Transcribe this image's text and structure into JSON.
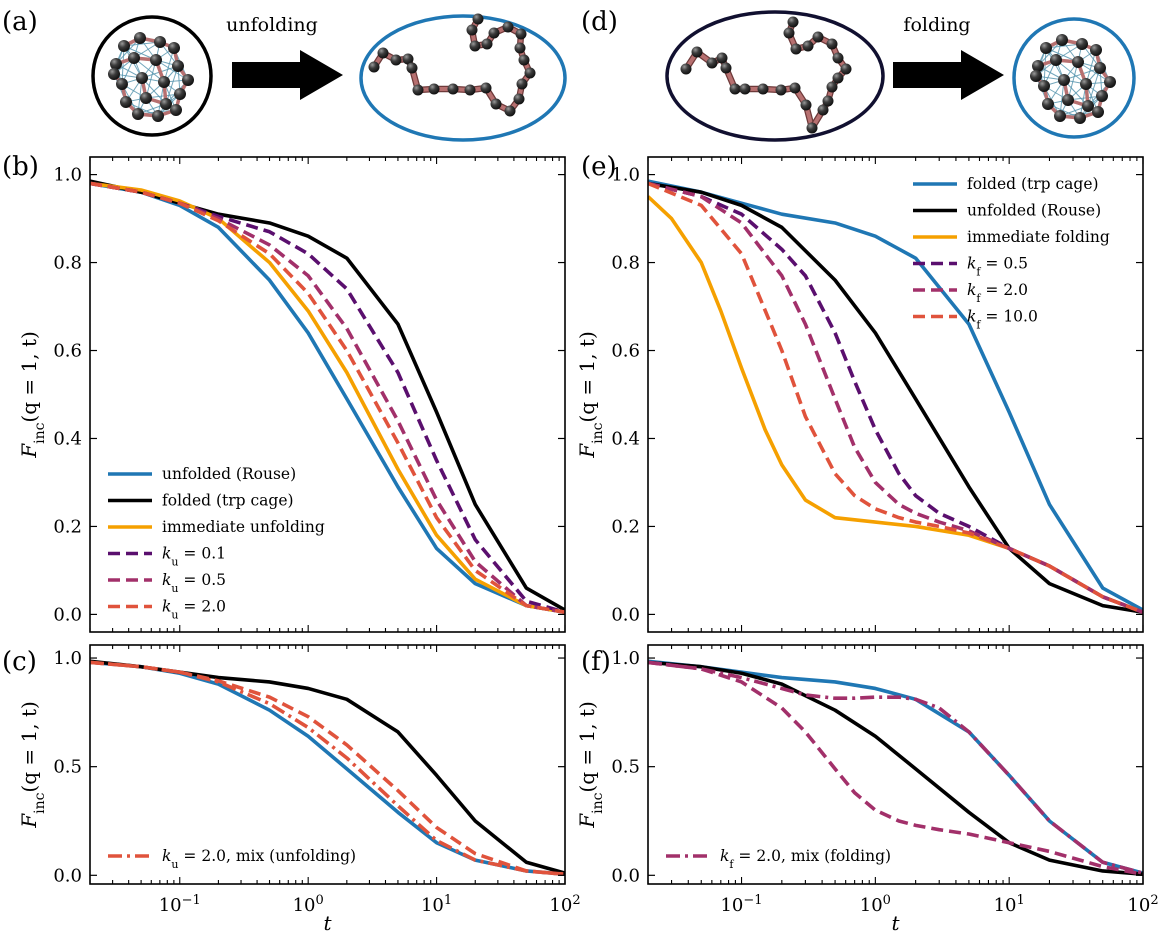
{
  "panel_labels": [
    "(a)",
    "(b)",
    "(c)",
    "(d)",
    "(e)",
    "(f)"
  ],
  "schematic": {
    "left_arrow_label": "unfolding",
    "right_arrow_label": "folding",
    "colors": {
      "folded_ring": "#000000",
      "unfolded_ring": "#1f77b4",
      "bead": "#3a3a3a",
      "bond": "#b77070",
      "contact": "#5a97b0"
    }
  },
  "chart_data": [
    {
      "id": "b",
      "type": "line",
      "xscale": "log",
      "xlim": [
        0.02,
        100
      ],
      "ylim": [
        -0.04,
        1.04
      ],
      "xlabel": "",
      "ylabel": "F_inc(q = 1, t)",
      "yticks": [
        "0.0",
        "0.2",
        "0.4",
        "0.6",
        "0.8",
        "1.0"
      ],
      "legend": "bottom-left",
      "series": [
        {
          "name": "unfolded (Rouse)",
          "color": "#1f77b4",
          "style": "solid",
          "x": [
            0.02,
            0.05,
            0.1,
            0.2,
            0.5,
            1,
            2,
            5,
            10,
            20,
            50,
            100
          ],
          "y": [
            0.98,
            0.96,
            0.93,
            0.88,
            0.76,
            0.64,
            0.49,
            0.29,
            0.15,
            0.07,
            0.02,
            0.005
          ]
        },
        {
          "name": "folded (trp cage)",
          "color": "#000000",
          "style": "solid",
          "x": [
            0.02,
            0.05,
            0.1,
            0.2,
            0.5,
            1,
            2,
            5,
            10,
            20,
            50,
            100
          ],
          "y": [
            0.985,
            0.96,
            0.935,
            0.91,
            0.89,
            0.86,
            0.81,
            0.66,
            0.46,
            0.25,
            0.06,
            0.01
          ]
        },
        {
          "name": "immediate unfolding",
          "color": "#f5a000",
          "style": "solid",
          "x": [
            0.02,
            0.05,
            0.1,
            0.2,
            0.5,
            1,
            2,
            5,
            10,
            20,
            50,
            100
          ],
          "y": [
            0.98,
            0.965,
            0.94,
            0.9,
            0.8,
            0.69,
            0.55,
            0.33,
            0.18,
            0.08,
            0.02,
            0.005
          ]
        },
        {
          "name": "k_u = 0.1",
          "color": "#5a0f6e",
          "style": "dashed",
          "x": [
            0.02,
            0.05,
            0.1,
            0.2,
            0.5,
            1,
            2,
            5,
            10,
            20,
            50,
            100
          ],
          "y": [
            0.98,
            0.96,
            0.935,
            0.905,
            0.87,
            0.82,
            0.74,
            0.55,
            0.35,
            0.17,
            0.03,
            0.005
          ]
        },
        {
          "name": "k_u = 0.5",
          "color": "#a2306a",
          "style": "dashed",
          "x": [
            0.02,
            0.05,
            0.1,
            0.2,
            0.5,
            1,
            2,
            5,
            10,
            20,
            50,
            100
          ],
          "y": [
            0.98,
            0.96,
            0.935,
            0.9,
            0.84,
            0.77,
            0.65,
            0.44,
            0.26,
            0.12,
            0.02,
            0.005
          ]
        },
        {
          "name": "k_u = 2.0",
          "color": "#e0533c",
          "style": "dashed",
          "x": [
            0.02,
            0.05,
            0.1,
            0.2,
            0.5,
            1,
            2,
            5,
            10,
            20,
            50,
            100
          ],
          "y": [
            0.98,
            0.96,
            0.935,
            0.895,
            0.82,
            0.73,
            0.6,
            0.39,
            0.22,
            0.1,
            0.02,
            0.005
          ]
        }
      ]
    },
    {
      "id": "c",
      "type": "line",
      "xscale": "log",
      "xlim": [
        0.02,
        100
      ],
      "ylim": [
        -0.04,
        1.06
      ],
      "xlabel": "t",
      "ylabel": "F_inc(q = 1, t)",
      "yticks": [
        "0.0",
        "0.5",
        "1.0"
      ],
      "legend": "bottom-left",
      "series": [
        {
          "name": "",
          "color": "#1f77b4",
          "style": "solid",
          "x": [
            0.02,
            0.05,
            0.1,
            0.2,
            0.5,
            1,
            2,
            5,
            10,
            20,
            50,
            100
          ],
          "y": [
            0.98,
            0.96,
            0.93,
            0.88,
            0.76,
            0.64,
            0.49,
            0.29,
            0.15,
            0.07,
            0.02,
            0.005
          ]
        },
        {
          "name": "",
          "color": "#000000",
          "style": "solid",
          "x": [
            0.02,
            0.05,
            0.1,
            0.2,
            0.5,
            1,
            2,
            5,
            10,
            20,
            50,
            100
          ],
          "y": [
            0.985,
            0.96,
            0.935,
            0.91,
            0.89,
            0.86,
            0.81,
            0.66,
            0.46,
            0.25,
            0.06,
            0.01
          ]
        },
        {
          "name": "",
          "color": "#e0533c",
          "style": "dashed",
          "x": [
            0.02,
            0.05,
            0.1,
            0.2,
            0.5,
            1,
            2,
            5,
            10,
            20,
            50,
            100
          ],
          "y": [
            0.98,
            0.96,
            0.935,
            0.895,
            0.82,
            0.73,
            0.6,
            0.39,
            0.22,
            0.1,
            0.02,
            0.005
          ]
        },
        {
          "name": "k_u = 2.0, mix (unfolding)",
          "color": "#e0533c",
          "style": "dashdot",
          "x": [
            0.02,
            0.05,
            0.1,
            0.2,
            0.5,
            1,
            2,
            5,
            10,
            20,
            50,
            100
          ],
          "y": [
            0.98,
            0.96,
            0.935,
            0.89,
            0.79,
            0.68,
            0.54,
            0.32,
            0.16,
            0.07,
            0.02,
            0.005
          ]
        }
      ]
    },
    {
      "id": "e",
      "type": "line",
      "xscale": "log",
      "xlim": [
        0.02,
        100
      ],
      "ylim": [
        -0.04,
        1.04
      ],
      "xlabel": "",
      "ylabel": "F_inc(q = 1, t)",
      "yticks": [
        "0.0",
        "0.2",
        "0.4",
        "0.6",
        "0.8",
        "1.0"
      ],
      "legend": "top-right",
      "series": [
        {
          "name": "folded (trp cage)",
          "color": "#1f77b4",
          "style": "solid",
          "x": [
            0.02,
            0.05,
            0.1,
            0.2,
            0.5,
            1,
            2,
            5,
            10,
            20,
            50,
            100
          ],
          "y": [
            0.985,
            0.96,
            0.935,
            0.91,
            0.89,
            0.86,
            0.81,
            0.66,
            0.46,
            0.25,
            0.06,
            0.01
          ]
        },
        {
          "name": "unfolded (Rouse)",
          "color": "#000000",
          "style": "solid",
          "x": [
            0.02,
            0.05,
            0.1,
            0.2,
            0.5,
            1,
            2,
            5,
            10,
            20,
            50,
            100
          ],
          "y": [
            0.98,
            0.96,
            0.93,
            0.88,
            0.76,
            0.64,
            0.49,
            0.29,
            0.15,
            0.07,
            0.02,
            0.005
          ]
        },
        {
          "name": "immediate folding",
          "color": "#f5a000",
          "style": "solid",
          "x": [
            0.02,
            0.03,
            0.05,
            0.07,
            0.1,
            0.15,
            0.2,
            0.3,
            0.5,
            1,
            2,
            5,
            10,
            20,
            50,
            100
          ],
          "y": [
            0.95,
            0.9,
            0.8,
            0.69,
            0.56,
            0.42,
            0.34,
            0.26,
            0.22,
            0.21,
            0.2,
            0.18,
            0.15,
            0.11,
            0.04,
            0.005
          ]
        },
        {
          "name": "k_f = 0.5",
          "color": "#5a0f6e",
          "style": "dashed",
          "x": [
            0.02,
            0.05,
            0.1,
            0.2,
            0.3,
            0.5,
            0.7,
            1,
            1.5,
            2,
            3,
            5,
            10,
            20,
            50,
            100
          ],
          "y": [
            0.98,
            0.95,
            0.91,
            0.83,
            0.77,
            0.64,
            0.53,
            0.42,
            0.32,
            0.27,
            0.23,
            0.2,
            0.15,
            0.11,
            0.04,
            0.005
          ]
        },
        {
          "name": "k_f = 2.0",
          "color": "#a2306a",
          "style": "dashed",
          "x": [
            0.02,
            0.05,
            0.1,
            0.2,
            0.3,
            0.5,
            0.7,
            1,
            1.5,
            2,
            3,
            5,
            10,
            20,
            50,
            100
          ],
          "y": [
            0.98,
            0.95,
            0.89,
            0.77,
            0.66,
            0.49,
            0.38,
            0.3,
            0.25,
            0.23,
            0.21,
            0.19,
            0.15,
            0.11,
            0.04,
            0.005
          ]
        },
        {
          "name": "k_f = 10.0",
          "color": "#e0533c",
          "style": "dashed",
          "x": [
            0.02,
            0.05,
            0.1,
            0.2,
            0.3,
            0.5,
            0.7,
            1,
            1.5,
            2,
            3,
            5,
            10,
            20,
            50,
            100
          ],
          "y": [
            0.98,
            0.93,
            0.82,
            0.6,
            0.45,
            0.32,
            0.27,
            0.24,
            0.22,
            0.21,
            0.2,
            0.185,
            0.15,
            0.11,
            0.04,
            0.005
          ]
        }
      ]
    },
    {
      "id": "f",
      "type": "line",
      "xscale": "log",
      "xlim": [
        0.02,
        100
      ],
      "ylim": [
        -0.04,
        1.06
      ],
      "xlabel": "t",
      "ylabel": "F_inc(q = 1, t)",
      "yticks": [
        "0.0",
        "0.5",
        "1.0"
      ],
      "legend": "bottom-left",
      "series": [
        {
          "name": "",
          "color": "#1f77b4",
          "style": "solid",
          "x": [
            0.02,
            0.05,
            0.1,
            0.2,
            0.5,
            1,
            2,
            5,
            10,
            20,
            50,
            100
          ],
          "y": [
            0.985,
            0.96,
            0.935,
            0.91,
            0.89,
            0.86,
            0.81,
            0.66,
            0.46,
            0.25,
            0.06,
            0.01
          ]
        },
        {
          "name": "",
          "color": "#000000",
          "style": "solid",
          "x": [
            0.02,
            0.05,
            0.1,
            0.2,
            0.5,
            1,
            2,
            5,
            10,
            20,
            50,
            100
          ],
          "y": [
            0.98,
            0.96,
            0.93,
            0.88,
            0.76,
            0.64,
            0.49,
            0.29,
            0.15,
            0.07,
            0.02,
            0.005
          ]
        },
        {
          "name": "",
          "color": "#a2306a",
          "style": "dashed",
          "x": [
            0.02,
            0.05,
            0.1,
            0.2,
            0.3,
            0.5,
            0.7,
            1,
            1.5,
            2,
            3,
            5,
            10,
            20,
            50,
            100
          ],
          "y": [
            0.98,
            0.95,
            0.89,
            0.77,
            0.66,
            0.49,
            0.38,
            0.3,
            0.25,
            0.23,
            0.21,
            0.19,
            0.15,
            0.11,
            0.04,
            0.005
          ]
        },
        {
          "name": "k_f = 2.0, mix (folding)",
          "color": "#a2306a",
          "style": "dashdot",
          "x": [
            0.02,
            0.05,
            0.1,
            0.2,
            0.3,
            0.5,
            0.7,
            1,
            1.5,
            2,
            3,
            5,
            10,
            20,
            50,
            100
          ],
          "y": [
            0.98,
            0.95,
            0.91,
            0.86,
            0.83,
            0.815,
            0.815,
            0.82,
            0.82,
            0.81,
            0.77,
            0.66,
            0.46,
            0.25,
            0.06,
            0.01
          ]
        }
      ]
    }
  ]
}
